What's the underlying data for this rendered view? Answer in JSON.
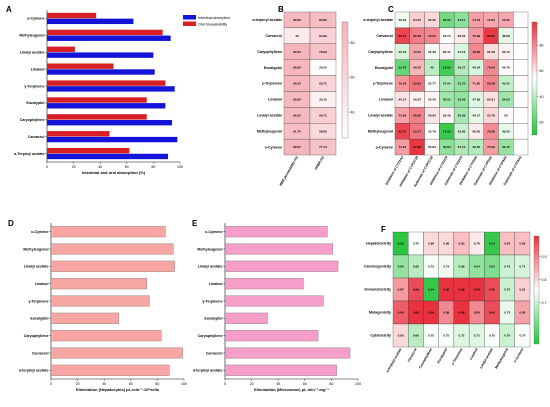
{
  "colors": {
    "intestinal": "#1414d8",
    "oral": "#d81f26",
    "hepato_bar": "#f7a6a3",
    "microsome_bar": "#f49ec9",
    "green": "#23c33b",
    "white": "#ffffff",
    "red": "#e8323f",
    "b_white": "#ffffff",
    "b_pink": "#f4b3ba"
  },
  "chart_data": [
    {
      "id": "A",
      "panel_label": "A",
      "type": "bar",
      "orientation": "horizontal",
      "categories": [
        "o-Cymene",
        "Methyleugenol",
        "Linalyl acetate",
        "Linalool",
        "γ-Terpinene",
        "Eucalyptol",
        "Caryophyllene",
        "Carvacrol",
        "α-Terpinyl acetate"
      ],
      "series": [
        {
          "name": "Intestinal absorption",
          "values": [
            65,
            93,
            80,
            81,
            96,
            89,
            94,
            98,
            91
          ]
        },
        {
          "name": "Oral bioavailability",
          "values": [
            37,
            87,
            21,
            50,
            89,
            75,
            75,
            47,
            62
          ]
        }
      ],
      "xlabel": "Intestinal and oral absorption (%)",
      "xlim": [
        0,
        100
      ],
      "xticks": [
        0,
        20,
        40,
        60,
        80,
        100
      ],
      "legend_position": "top-right"
    },
    {
      "id": "B",
      "panel_label": "B",
      "type": "heatmap",
      "rows": [
        "α-terpinyl acetate",
        "Carvacrol",
        "Caryophyllene",
        "Eucalyptol",
        "γ-Terpinene",
        "Linalool",
        "Linalyl acetate",
        "Methyleugenol",
        "o-Cymene"
      ],
      "columns": [
        "BBB permeability (%)",
        "PPBR (%)"
      ],
      "values": [
        [
          86.66,
          83.86
        ],
        [
          43.0,
          64.99
        ],
        [
          90.32,
          78.69
        ],
        [
          88.8,
          28.42
        ],
        [
          90.33,
          63.71
        ],
        [
          85.69,
          38.12
        ],
        [
          86.35,
          66.71
        ],
        [
          81.7,
          58.86
        ],
        [
          89.07,
          77.74
        ]
      ],
      "colorbar_ticks": [
        40,
        60,
        80
      ],
      "colorbar_range": [
        25,
        92
      ]
    },
    {
      "id": "C",
      "panel_label": "C",
      "type": "heatmap",
      "rows": [
        "α-terpinyl acetate",
        "Carvacrol",
        "Caryophyllene",
        "Eucalyptol",
        "γ-Terpinene",
        "Linalool",
        "Linalyl acetate",
        "Methyleugenol",
        "o-Cymene"
      ],
      "columns": [
        "Inhibition of CYP1A2",
        "Inhibition of CYP2C19",
        "Substrate of CYP2C19",
        "Inhibition of CYP2C9",
        "Substrate of CYP2C9",
        "Inhibition of CYP2D6",
        "Substrate of CYP2D6",
        "Inhibition of CYP3A4",
        "Substrate of CYP3A4"
      ],
      "values": [
        [
          50.94,
          64.37,
          62.35,
          26.35,
          31.17,
          74.43,
          72.82,
          72.82,
          null
        ],
        [
          93.73,
          82.03,
          79.67,
          53.74,
          58.29,
          75.99,
          96.6,
          48.89,
          null
        ],
        [
          45.79,
          73.57,
          51.48,
          56.47,
          47.19,
          79.8,
          61.58,
          56.76,
          null
        ],
        [
          23.42,
          69.25,
          40.0,
          16.59,
          39.27,
          46.04,
          79.64,
          54.79,
          null
        ],
        [
          76.58,
          83.91,
          52.77,
          37.6,
          32.23,
          71.8,
          80.38,
          41.61,
          null
        ],
        [
          60.14,
          56.97,
          55.45,
          35.02,
          32.59,
          47.69,
          60.61,
          34.83,
          null
        ],
        [
          73.8,
          80.85,
          59.6,
          56.49,
          36.39,
          49.17,
          62.78,
          55.0,
          null
        ],
        [
          93.75,
          83.17,
          53.79,
          14.23,
          43.93,
          58.5,
          78.38,
          49.05,
          null
        ],
        [
          74.91,
          97.06,
          55.84,
          30.94,
          37.15,
          39.05,
          75.3,
          33.15,
          null
        ]
      ],
      "colorbar_ticks": [
        20,
        40,
        60,
        80
      ],
      "colorbar_range": [
        10,
        98
      ]
    },
    {
      "id": "D",
      "panel_label": "D",
      "type": "bar",
      "orientation": "horizontal",
      "categories": [
        "o-Cymene",
        "Methyleugenol",
        "Linalyl acetate",
        "Linalool",
        "γ-Terpinene",
        "Eucalyptol",
        "Caryophyllene",
        "Carvacrol",
        "α-terpinyl acetate"
      ],
      "values": [
        86,
        92,
        93,
        72,
        74,
        51,
        83,
        99,
        89
      ],
      "xlabel": "Elimination (Hepatocytes) μL.min⁻¹.10⁶cells",
      "xlim": [
        0,
        100
      ],
      "xticks": [
        0,
        20,
        40,
        60,
        80,
        100
      ]
    },
    {
      "id": "E",
      "panel_label": "E",
      "type": "bar",
      "orientation": "horizontal",
      "categories": [
        "o-Cymene",
        "Methyleugenol",
        "Linalyl acetate",
        "Linalool",
        "γ-Terpinene",
        "Eucalyptol",
        "Caryophyllene",
        "Carvacrol",
        "α-terpinyl acetate"
      ],
      "values": [
        77,
        81,
        85,
        59,
        74,
        32,
        70,
        94,
        84
      ],
      "xlabel": "Elimination (Microsome) μL.min⁻¹.mg⁻¹",
      "xlim": [
        0,
        100
      ],
      "xticks": [
        0,
        20,
        40,
        60,
        80,
        100
      ]
    },
    {
      "id": "F",
      "panel_label": "F",
      "type": "heatmap",
      "rows": [
        "Hepatotoxicity",
        "Carcinogenicity",
        "Immunotoxicity",
        "Mutagenicity",
        "Cytotoxicity"
      ],
      "columns": [
        "α-terpinyl acetate",
        "Carvacrol",
        "Caryophyllene",
        "Eucalyptol",
        "γ-Terpinene",
        "Linalool",
        "Linalyl acetate",
        "Methyleugenol",
        "o-Cymene"
      ],
      "values": [
        [
          0.53,
          0.75,
          0.8,
          0.8,
          0.83,
          0.78,
          0.54,
          0.83,
          0.83
        ],
        [
          0.64,
          0.68,
          0.75,
          0.74,
          0.68,
          0.64,
          0.62,
          0.7,
          0.71
        ],
        [
          0.87,
          0.96,
          0.54,
          0.99,
          0.99,
          0.99,
          0.96,
          0.7,
          0.81
        ],
        [
          0.94,
          0.99,
          0.99,
          0.89,
          0.99,
          0.89,
          0.96,
          0.73,
          0.86
        ],
        [
          0.8,
          0.68,
          0.75,
          0.75,
          0.72,
          0.72,
          0.75,
          0.7,
          0.75
        ]
      ],
      "colorbar_ticks": [
        0.7,
        0.8,
        0.9
      ],
      "colorbar_range": [
        0.52,
        0.99
      ]
    }
  ]
}
